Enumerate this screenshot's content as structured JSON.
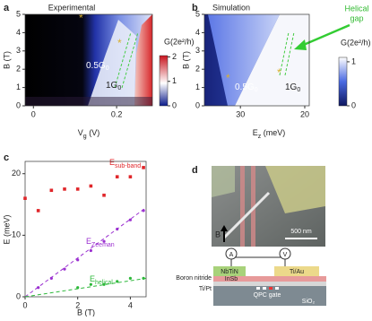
{
  "panels": {
    "a": {
      "label": "a",
      "title": "Experimental",
      "xlabel": {
        "main": "V",
        "sub": "g",
        "rest": " (V)"
      },
      "ylabel": "B (T)",
      "xlim": [
        -0.02,
        0.286
      ],
      "xticks": [
        0,
        0.2
      ],
      "ylim": [
        0,
        5
      ],
      "yticks": [
        0,
        1,
        2,
        3,
        4,
        5
      ],
      "cbar_title": "G(2e²/h)",
      "clim": [
        0,
        2.2
      ],
      "cticks": [
        0,
        1,
        2
      ],
      "regions": [
        {
          "main": "0.5G",
          "sub": "0"
        },
        {
          "main": "1G",
          "sub": "0"
        }
      ],
      "markers": [
        "*",
        "*"
      ]
    },
    "b": {
      "label": "b",
      "title": "Simulation",
      "xlabel": {
        "main": "E",
        "sub": "z",
        "rest": " (meV)"
      },
      "ylabel": "B (T)",
      "xlim": [
        35.6,
        19.3
      ],
      "xticks": [
        30,
        20
      ],
      "ylim": [
        0,
        5
      ],
      "yticks": [
        0,
        1,
        2,
        3,
        4,
        5
      ],
      "cbar_title": "G(2e²/h)",
      "clim": [
        0,
        1.1
      ],
      "cticks": [
        0,
        1
      ],
      "regions": [
        {
          "main": "0.5G",
          "sub": "0"
        },
        {
          "main": "1G",
          "sub": "0"
        }
      ],
      "markers": [
        "*",
        "*"
      ],
      "annotation": [
        "Helical",
        "gap"
      ]
    },
    "c": {
      "label": "c",
      "type": "scatter",
      "xlabel": "B (T)",
      "ylabel": "E (meV)",
      "xlim": [
        0,
        4.6
      ],
      "xticks": [
        0,
        2,
        4
      ],
      "ylim": [
        0,
        22
      ],
      "yticks": [
        0,
        10,
        20
      ],
      "series": [
        {
          "name": {
            "main": "E",
            "sub": "sub-band"
          },
          "color": "#e0262a",
          "x": [
            0,
            0.5,
            1,
            1.5,
            2,
            2.5,
            3,
            3.5,
            4,
            4.5
          ],
          "values": [
            16,
            14,
            17.3,
            17.5,
            17.5,
            18,
            16.5,
            19.5,
            19.5,
            21
          ]
        },
        {
          "name": {
            "main": "E",
            "sub": "Zeeman"
          },
          "color": "#9b30d0",
          "x": [
            0.5,
            1,
            1.5,
            2,
            2.5,
            3,
            3.5,
            4,
            4.5
          ],
          "values": [
            1.5,
            3,
            4.5,
            6,
            7.5,
            9,
            11,
            12.5,
            14
          ]
        },
        {
          "name": {
            "main": "E",
            "sub": "helical"
          },
          "color": "#2db83a",
          "x": [
            2,
            2.5,
            3,
            3.5,
            4,
            4.5
          ],
          "values": [
            1.5,
            2,
            2,
            2.5,
            3,
            3
          ]
        }
      ],
      "fits": [
        {
          "color": "#9b30d0",
          "x": [
            0,
            4.6
          ],
          "values": [
            0,
            14.5
          ]
        },
        {
          "color": "#2db83a",
          "x": [
            0,
            4.6
          ],
          "values": [
            0,
            3
          ]
        }
      ]
    },
    "d": {
      "label": "d",
      "image_labels": [
        "B",
        "500 nm"
      ],
      "meters": [
        "A",
        "V"
      ],
      "layers": [
        "NbTiN",
        "Ti/Au",
        "InSb",
        "Boron nitride",
        "Ti/Pt",
        "QPC gate",
        "SiO₂"
      ]
    }
  }
}
